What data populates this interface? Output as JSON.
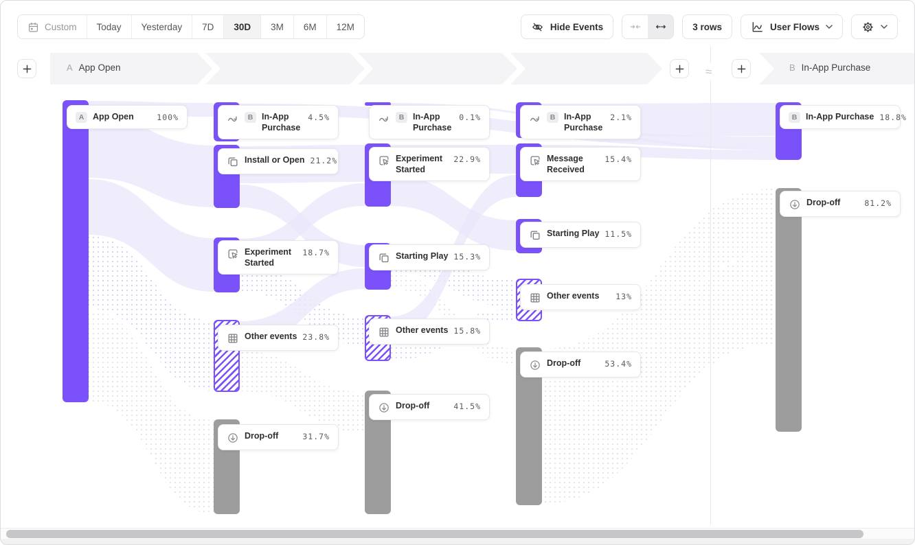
{
  "toolbar": {
    "date_ranges": [
      "Custom",
      "Today",
      "Yesterday",
      "7D",
      "30D",
      "3M",
      "6M",
      "12M"
    ],
    "active_range": "30D",
    "hide_events": "Hide Events",
    "rows": "3 rows",
    "view_type": "User Flows"
  },
  "header": {
    "start_event": {
      "badge": "A",
      "label": "App Open"
    },
    "end_event": {
      "badge": "B",
      "label": "In-App Purchase"
    }
  },
  "chart_data": {
    "type": "sankey",
    "unit": "percent of users per step",
    "start": {
      "badge": "A",
      "label": "App Open",
      "value": "100%"
    },
    "columns": [
      {
        "nodes": [
          {
            "label": "In-App Purchase",
            "value": "4.5%",
            "icon": "jump",
            "badge": "B",
            "style": "purple",
            "wrap": true
          },
          {
            "label": "Install or Open",
            "value": "21.2%",
            "icon": "squares",
            "style": "purple"
          },
          {
            "label": "Experiment Started",
            "value": "18.7%",
            "icon": "cursorbox",
            "style": "purple",
            "wrap": true
          },
          {
            "label": "Other events",
            "value": "23.8%",
            "icon": "grid",
            "style": "hatched"
          },
          {
            "label": "Drop-off",
            "value": "31.7%",
            "icon": "drop",
            "style": "gray"
          }
        ]
      },
      {
        "nodes": [
          {
            "label": "In-App Purchase",
            "value": "0.1%",
            "icon": "jump",
            "badge": "B",
            "style": "purple",
            "wrap": true
          },
          {
            "label": "Experiment Started",
            "value": "22.9%",
            "icon": "cursorbox",
            "style": "purple",
            "wrap": true
          },
          {
            "label": "Starting Play",
            "value": "15.3%",
            "icon": "squares",
            "style": "purple"
          },
          {
            "label": "Other events",
            "value": "15.8%",
            "icon": "grid",
            "style": "hatched"
          },
          {
            "label": "Drop-off",
            "value": "41.5%",
            "icon": "drop",
            "style": "gray"
          }
        ]
      },
      {
        "nodes": [
          {
            "label": "In-App Purchase",
            "value": "2.1%",
            "icon": "jump",
            "badge": "B",
            "style": "purple",
            "wrap": true
          },
          {
            "label": "Message Received",
            "value": "15.4%",
            "icon": "cursorbox",
            "style": "purple",
            "wrap": true
          },
          {
            "label": "Starting Play",
            "value": "11.5%",
            "icon": "squares",
            "style": "purple"
          },
          {
            "label": "Other events",
            "value": "13%",
            "icon": "grid",
            "style": "hatched"
          },
          {
            "label": "Drop-off",
            "value": "53.4%",
            "icon": "drop",
            "style": "gray"
          }
        ]
      }
    ],
    "end": {
      "nodes": [
        {
          "label": "In-App Purchase",
          "value": "18.8%",
          "badge": "B",
          "style": "purple"
        },
        {
          "label": "Drop-off",
          "value": "81.2%",
          "icon": "drop",
          "style": "gray"
        }
      ]
    }
  },
  "colors": {
    "accent": "#7b52fa",
    "bar_gray": "#9d9d9d",
    "flow": "#ebe7fb"
  }
}
